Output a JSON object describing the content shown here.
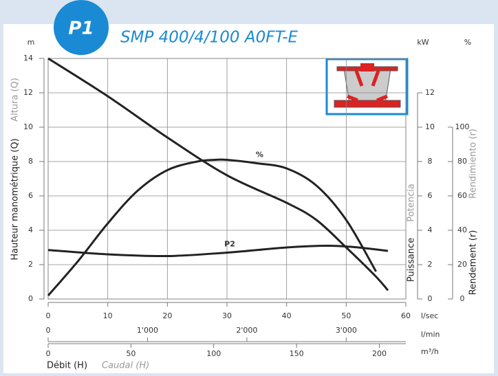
{
  "chart_data": {
    "type": "line",
    "badge": "P1",
    "title": "SMP 400/4/100 A0FT-E",
    "y_unit": "m",
    "y2_unit": "kW",
    "y3_unit": "%",
    "y_label": "Hauteur manométrique (Q)",
    "y_label_alt": "Altura (Q)",
    "y2_label": "Puissance",
    "y2_label_alt": "Potencia",
    "y3_label": "Rendement (r)",
    "y3_label_alt": "Rendimiento (r)",
    "x_label": "Débit (H)",
    "x_label_alt": "Caudal (H)",
    "x_unit": "l/sec",
    "x2_unit": "l/min",
    "x3_unit": "m³/h",
    "xlim": [
      0,
      60
    ],
    "xticks": [
      0,
      10,
      20,
      30,
      40,
      50,
      60
    ],
    "x2lim": [
      0,
      3600
    ],
    "x2ticks": [
      0,
      {
        "value": 1000,
        "label": "1'000"
      },
      {
        "value": 2000,
        "label": "2'000"
      },
      {
        "value": 3000,
        "label": "3'000"
      }
    ],
    "x3lim": [
      0,
      216
    ],
    "x3ticks": [
      0,
      50,
      100,
      150,
      200
    ],
    "ylim": [
      0,
      14
    ],
    "yticks": [
      0,
      2,
      4,
      6,
      8,
      10,
      12,
      14
    ],
    "y2lim": [
      0,
      14
    ],
    "y2ticks": [
      0,
      2,
      4,
      6,
      8,
      10,
      12
    ],
    "y3lim": [
      0,
      140
    ],
    "y3ticks": [
      0,
      20,
      40,
      60,
      80,
      100
    ],
    "grid": true,
    "series": [
      {
        "color": "#222222",
        "axis": "y",
        "x": [
          0,
          10,
          20,
          30,
          40,
          45,
          50,
          55,
          57
        ],
        "values": [
          14,
          11.8,
          9.4,
          7.2,
          5.6,
          4.6,
          3,
          1.3,
          0.5
        ]
      },
      {
        "name": "%",
        "color": "#222222",
        "axis": "y3",
        "x": [
          0,
          5,
          10,
          15,
          20,
          25,
          28,
          30,
          35,
          40,
          45,
          50,
          55
        ],
        "values": [
          2,
          22,
          44,
          63,
          75,
          80,
          81,
          81,
          79,
          76,
          66,
          46,
          16
        ]
      },
      {
        "name": "P2",
        "color": "#222222",
        "axis": "y2",
        "x": [
          0,
          10,
          20,
          30,
          40,
          47,
          52,
          57
        ],
        "values": [
          2.85,
          2.6,
          2.5,
          2.7,
          3.0,
          3.1,
          3.0,
          2.8
        ]
      }
    ]
  }
}
